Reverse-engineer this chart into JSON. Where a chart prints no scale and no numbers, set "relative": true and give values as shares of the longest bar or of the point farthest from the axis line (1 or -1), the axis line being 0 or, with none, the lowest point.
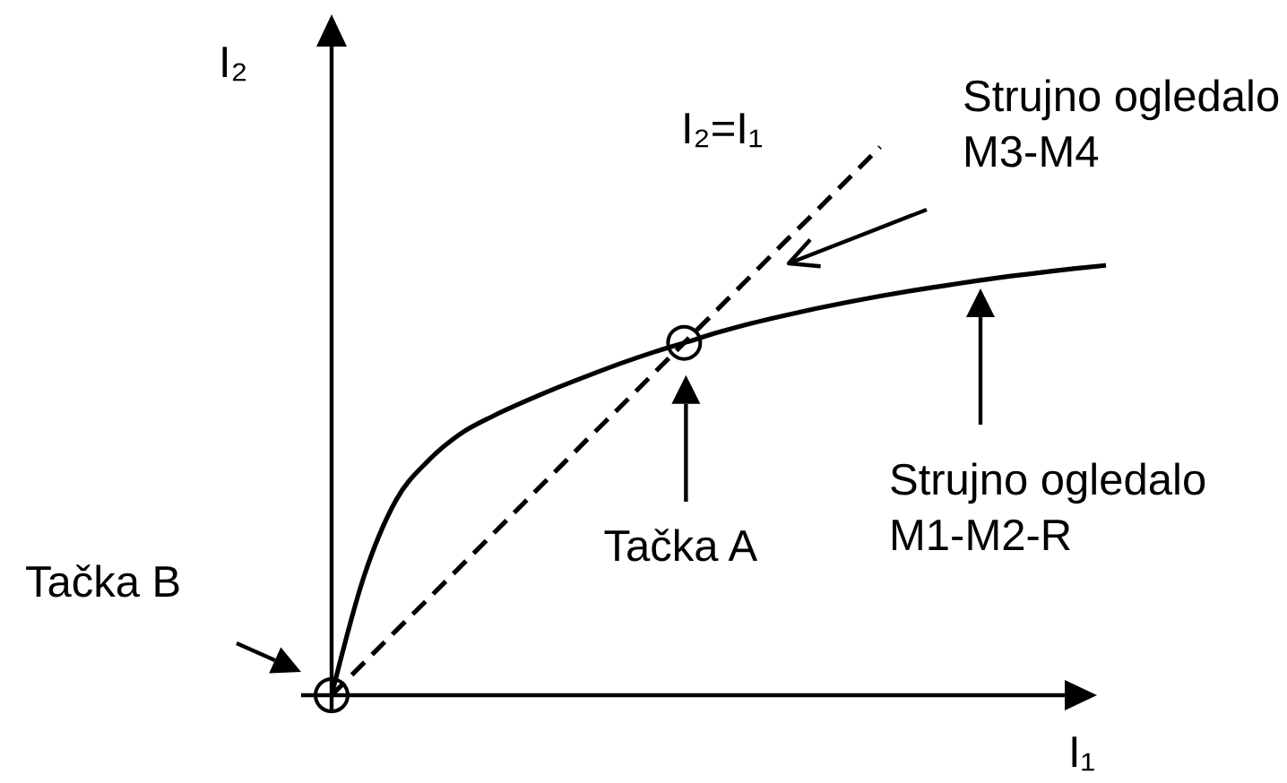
{
  "chart_data": {
    "type": "line",
    "relative": true,
    "xlabel": "I₁",
    "ylabel": "I₂",
    "categories": [
      null,
      null,
      null,
      null,
      null,
      null,
      null,
      null,
      null,
      null,
      null,
      null,
      null,
      null,
      null,
      null,
      null,
      null,
      null,
      null,
      null,
      null,
      null,
      null,
      null
    ],
    "series": [
      {
        "color": "#000000",
        "line_style": "dashed",
        "values": [
          0,
          0.059,
          0.118,
          0.176,
          0.235,
          0.294,
          0.353,
          0.412,
          0.471,
          0.529,
          0.588,
          0.647,
          0.706,
          0.765,
          0.824,
          0.882,
          0.941,
          1,
          null,
          null,
          null,
          null,
          null,
          null,
          null
        ]
      },
      {
        "color": "#000000",
        "line_style": "solid",
        "values": [
          0,
          0.216,
          0.356,
          0.428,
          0.477,
          0.509,
          0.536,
          0.561,
          0.584,
          0.606,
          0.626,
          0.644,
          0.662,
          0.678,
          0.692,
          0.705,
          0.717,
          0.728,
          0.738,
          0.747,
          0.756,
          0.764,
          0.771,
          0.778,
          0.784
        ]
      }
    ],
    "annotations": [
      "I₂=I₁",
      "Tačka A",
      "Tačka B",
      "Strujno ogledalo M3-M4",
      "Strujno ogledalo M1-M2-R"
    ]
  }
}
